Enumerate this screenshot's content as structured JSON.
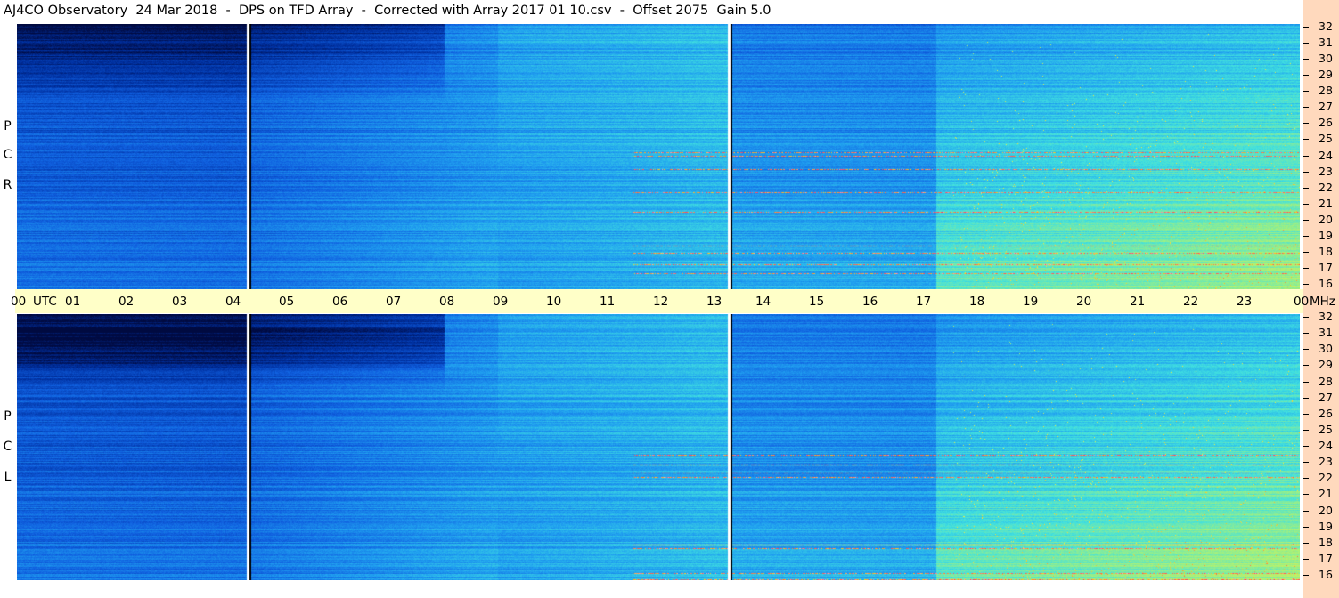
{
  "header": {
    "title": "AJ4CO Observatory  24 Mar 2018  -  DPS on TFD Array  -  Corrected with Array 2017 01 10.csv  -  Offset 2075  Gain 5.0"
  },
  "panels": [
    {
      "polarization": "RCP",
      "label_letters": [
        "R",
        "C",
        "P"
      ]
    },
    {
      "polarization": "LCP",
      "label_letters": [
        "L",
        "C",
        "P"
      ]
    }
  ],
  "time_axis": {
    "labels": [
      "00",
      "UTC",
      "01",
      "02",
      "03",
      "04",
      "05",
      "06",
      "07",
      "08",
      "09",
      "10",
      "11",
      "12",
      "13",
      "14",
      "15",
      "16",
      "17",
      "18",
      "19",
      "20",
      "21",
      "22",
      "23",
      "00",
      "MHz"
    ]
  },
  "chart_data": {
    "type": "heatmap",
    "title": "AJ4CO Observatory  24 Mar 2018  -  DPS on TFD Array  -  Corrected with Array 2017 01 10.csv  -  Offset 2075  Gain 5.0",
    "xlabel": "UTC",
    "ylabel": "MHz",
    "x_range_hours": [
      0,
      24
    ],
    "x_ticks": [
      "00",
      "01",
      "02",
      "03",
      "04",
      "05",
      "06",
      "07",
      "08",
      "09",
      "10",
      "11",
      "12",
      "13",
      "14",
      "15",
      "16",
      "17",
      "18",
      "19",
      "20",
      "21",
      "22",
      "23",
      "00"
    ],
    "y_range_mhz": [
      16,
      32
    ],
    "y_ticks": [
      32,
      31,
      30,
      29,
      28,
      27,
      26,
      25,
      24,
      23,
      22,
      21,
      20,
      19,
      18,
      17,
      16
    ],
    "series": [
      {
        "name": "RCP",
        "values": []
      },
      {
        "name": "LCP",
        "values": []
      }
    ],
    "data_gaps_utc": [
      "04:20",
      "13:20"
    ],
    "colormap": [
      "#000a40",
      "#0030a0",
      "#1060e0",
      "#20a0f0",
      "#40e0e0",
      "#a0f080",
      "#f0f040",
      "#ffc020",
      "#ff4060",
      "#ffffff"
    ]
  }
}
